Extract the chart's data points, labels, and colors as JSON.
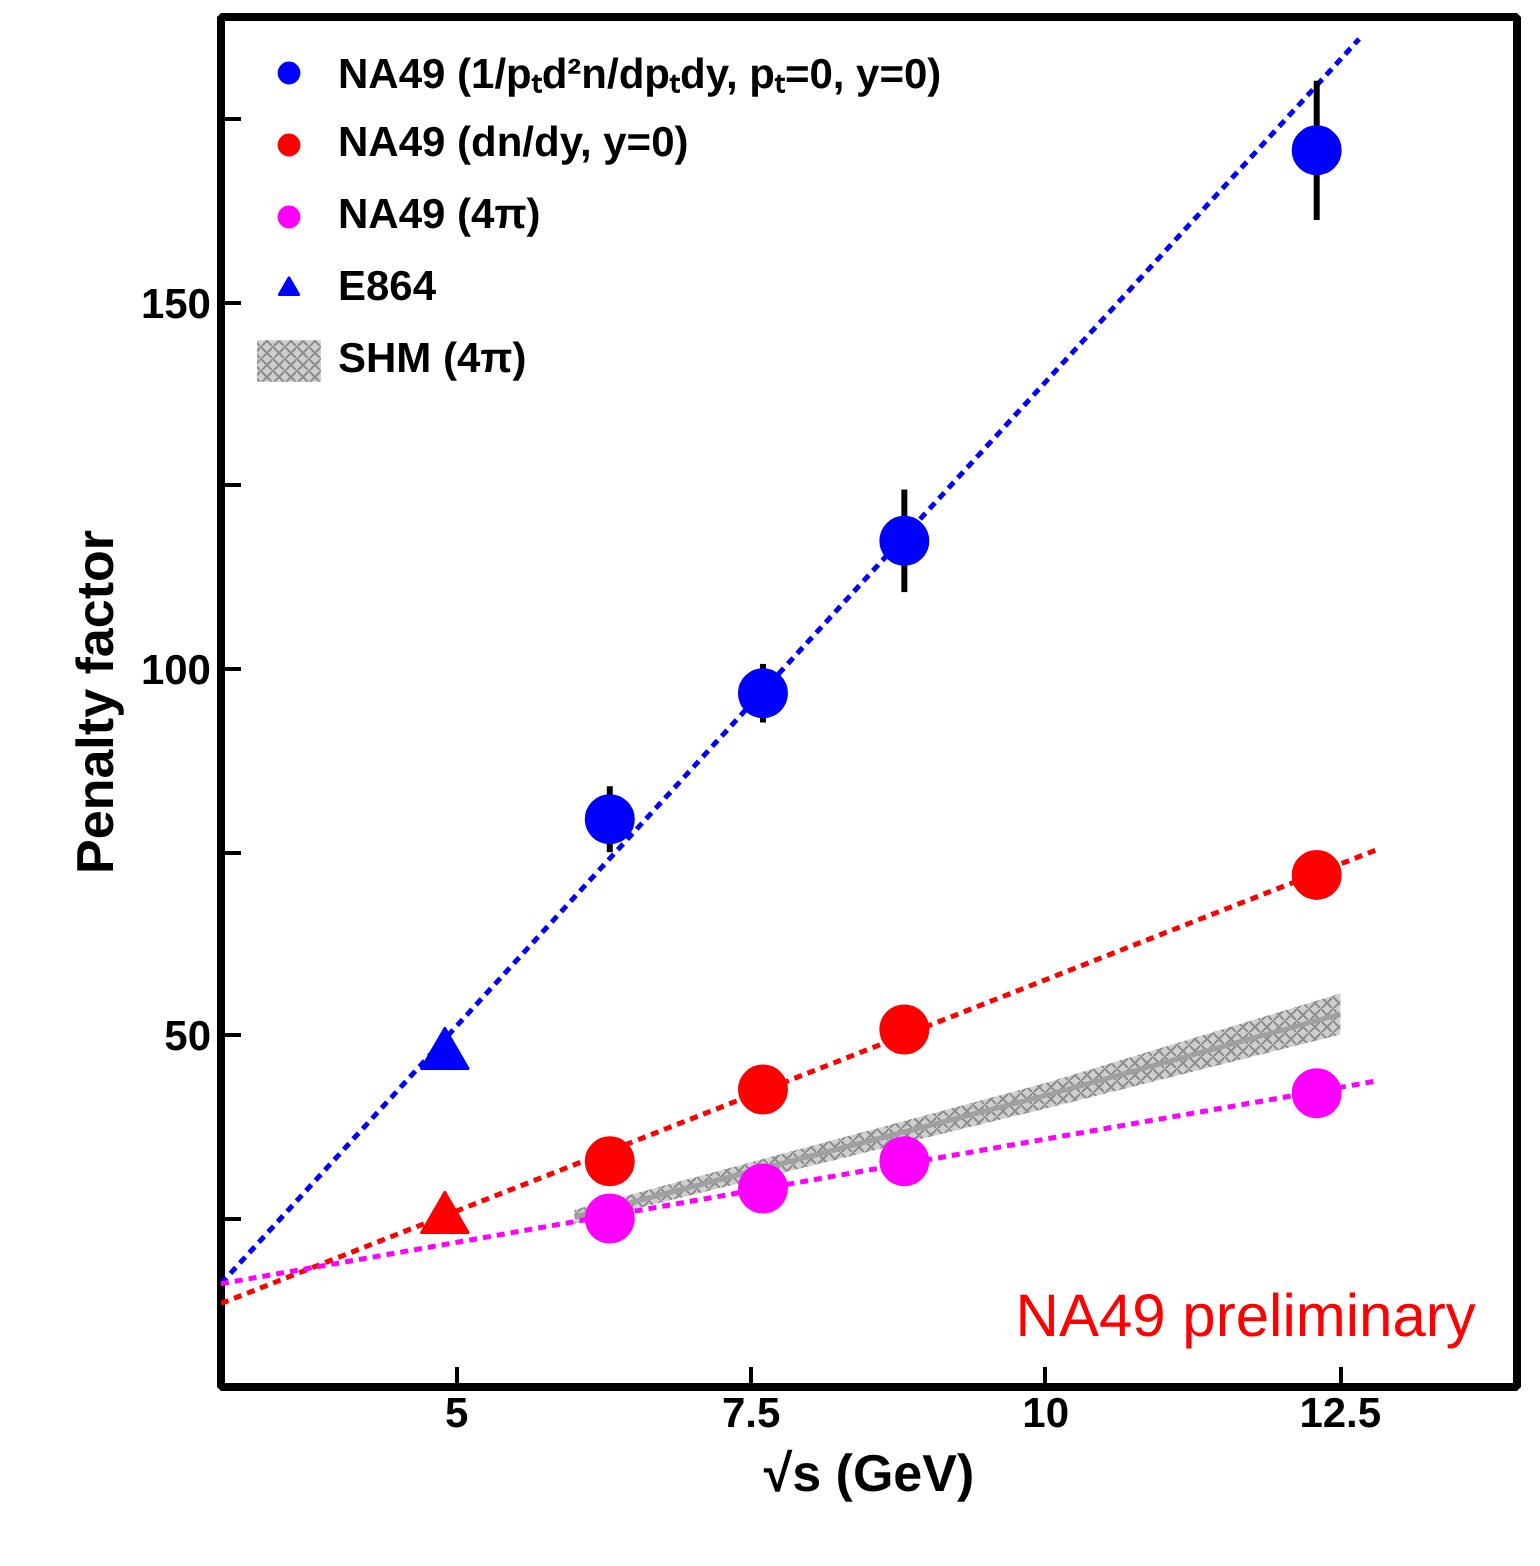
{
  "chart_data": {
    "type": "scatter",
    "xlabel": "√s (GeV)",
    "ylabel": "Penalty factor",
    "xlim": [
      3,
      14
    ],
    "ylim": [
      2,
      189
    ],
    "xticks": [
      5,
      7.5,
      10,
      12.5
    ],
    "yticks": [
      {
        "value": 25,
        "label": null
      },
      50,
      {
        "value": 75,
        "label": null
      },
      100,
      {
        "value": 125,
        "label": null
      },
      150,
      {
        "value": 175,
        "label": null
      }
    ],
    "grid": false,
    "legend": "top left",
    "annotations": [
      "NA49 preliminary"
    ],
    "series": [
      {
        "name": "NA49 (1/pₜd²n/dpₜdy, pₜ=0, y=0)",
        "marker": "circle",
        "color": "#0000ff",
        "x": [
          6.3,
          7.6,
          8.8,
          12.3
        ],
        "values": [
          79.5,
          96.7,
          117.5,
          170.8
        ],
        "errors": [
          4.5,
          4,
          7,
          9.5
        ]
      },
      {
        "name": "NA49 (dn/dy, y=0)",
        "marker": "circle",
        "color": "#ff0000",
        "x": [
          6.3,
          7.6,
          8.8,
          12.3
        ],
        "values": [
          32.8,
          42.6,
          50.8,
          71.9
        ]
      },
      {
        "name": "NA49 (4π)",
        "marker": "circle",
        "color": "#ff00ff",
        "x": [
          6.3,
          7.6,
          8.8,
          12.3
        ],
        "values": [
          25,
          29.1,
          32.8,
          42.1
        ]
      },
      {
        "name": "E864",
        "marker": "triangle",
        "color": "#0000ff",
        "x": [
          4.9
        ],
        "values": [
          47.3
        ]
      },
      {
        "marker": "triangle",
        "color": "#ff0000",
        "x": [
          4.9
        ],
        "values": [
          24.9
        ]
      },
      {
        "name": "SHM (4π)",
        "type": "line",
        "color": "#a0a0a0",
        "x": [
          6.0,
          10.0,
          12.5
        ],
        "values": [
          25.2,
          41.8,
          52.9
        ],
        "lower": [
          24.3,
          40.0,
          50.1
        ],
        "upper": [
          26.2,
          43.5,
          55.7
        ]
      },
      {
        "type": "line",
        "line_style": "dashed",
        "color": "#0000ff",
        "x": [
          3,
          12.66
        ],
        "values": [
          16.1,
          186
        ]
      },
      {
        "type": "line",
        "line_style": "dashed",
        "color": "#ff0000",
        "x": [
          3,
          12.82
        ],
        "values": [
          13.4,
          75.4
        ]
      },
      {
        "type": "line",
        "line_style": "dashed",
        "color": "#ff00ff",
        "x": [
          3,
          12.82
        ],
        "values": [
          16.1,
          43.8
        ]
      }
    ]
  }
}
